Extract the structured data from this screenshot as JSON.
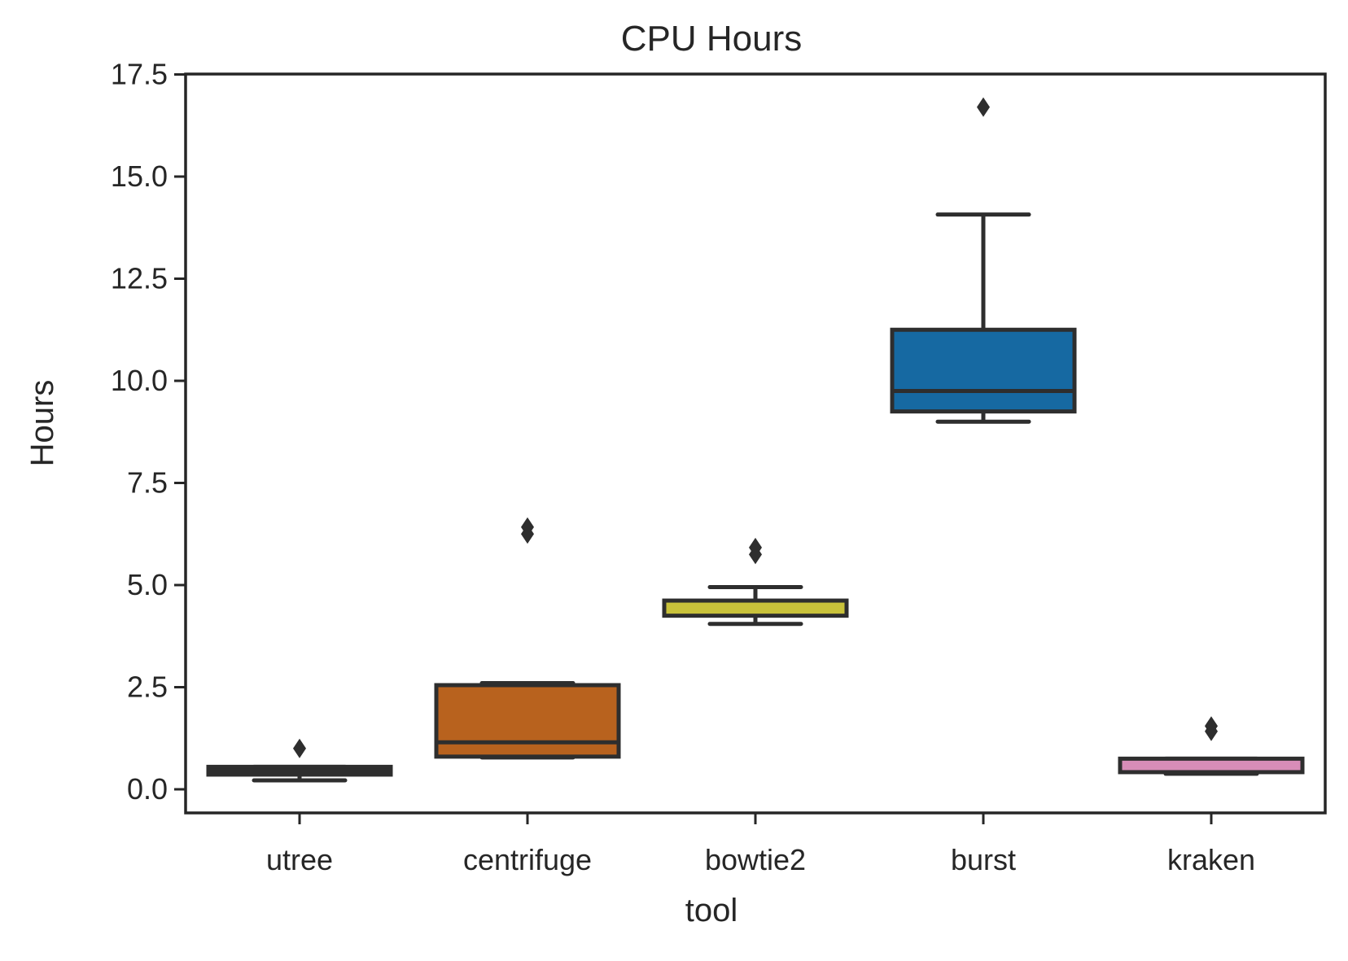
{
  "chart_data": {
    "type": "box",
    "title": "CPU Hours",
    "xlabel": "tool",
    "ylabel": "Hours",
    "ylim": [
      -0.55,
      17.5
    ],
    "yticks": [
      "0.0",
      "2.5",
      "5.0",
      "7.5",
      "10.0",
      "12.5",
      "15.0",
      "17.5"
    ],
    "ytick_values": [
      0,
      2.5,
      5,
      7.5,
      10,
      12.5,
      15,
      17.5
    ],
    "grid": false,
    "categories": [
      "utree",
      "centrifuge",
      "bowtie2",
      "burst",
      "kraken"
    ],
    "series": [
      {
        "category": "utree",
        "color": "#2f2f2f",
        "whisker_low": 0.22,
        "q1": 0.36,
        "median": 0.45,
        "q3": 0.55,
        "whisker_high": 0.55,
        "outliers": [
          1.0
        ]
      },
      {
        "category": "centrifuge",
        "color": "#b8621e",
        "whisker_low": 0.78,
        "q1": 0.8,
        "median": 1.15,
        "q3": 2.55,
        "whisker_high": 2.6,
        "outliers": [
          6.25,
          6.42
        ]
      },
      {
        "category": "bowtie2",
        "color": "#c9c23a",
        "whisker_low": 4.05,
        "q1": 4.25,
        "median": 4.5,
        "q3": 4.62,
        "whisker_high": 4.95,
        "outliers": [
          5.75,
          5.92
        ]
      },
      {
        "category": "burst",
        "color": "#1669a2",
        "whisker_low": 9.0,
        "q1": 9.25,
        "median": 9.75,
        "q3": 11.25,
        "whisker_high": 14.07,
        "outliers": [
          16.7
        ]
      },
      {
        "category": "kraken",
        "color": "#d88db8",
        "whisker_low": 0.38,
        "q1": 0.42,
        "median": 0.6,
        "q3": 0.75,
        "whisker_high": 0.75,
        "outliers": [
          1.42,
          1.55
        ]
      }
    ],
    "edge_color": "#2e2e2e"
  }
}
